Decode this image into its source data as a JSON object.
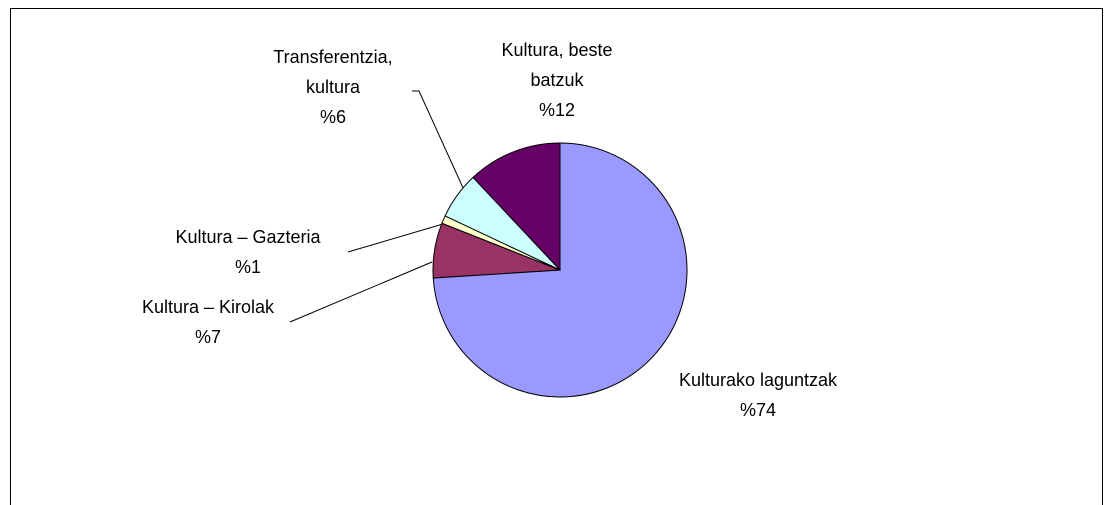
{
  "chart_data": {
    "type": "pie",
    "categories": [
      "Kulturako laguntzak",
      "Kultura – Kirolak",
      "Kultura – Gazteria",
      "Transferentzia, kultura",
      "Kultura, beste batzuk"
    ],
    "values": [
      74,
      7,
      1,
      6,
      12
    ],
    "value_labels": [
      "%74",
      "%7",
      "%1",
      "%6",
      "%12"
    ],
    "colors": [
      "#9999ff",
      "#993366",
      "#ffffcc",
      "#ccffff",
      "#660066"
    ]
  }
}
